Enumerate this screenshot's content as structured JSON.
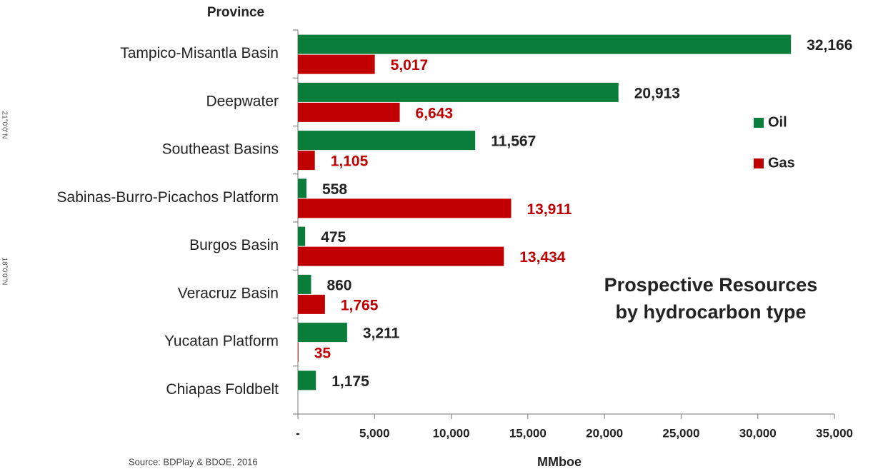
{
  "chart_data": {
    "type": "bar",
    "orientation": "horizontal",
    "y_label": "Province",
    "x_label": "MMboe",
    "annotation": "Prospective Resources\nby hydrocarbon type",
    "source": "Source: BDPlay & BDOE, 2016",
    "side_labels": [
      "21°0'0\"N",
      "18°0'0\"N"
    ],
    "categories": [
      "Tampico-Misantla Basin",
      "Deepwater",
      "Southeast Basins",
      "Sabinas-Burro-Picachos Platform",
      "Burgos Basin",
      "Veracruz Basin",
      "Yucatan Platform",
      "Chiapas Foldbelt"
    ],
    "series": [
      {
        "name": "Oil",
        "color": "#0b7d3b",
        "label_color": "#222222",
        "values": [
          32166,
          20913,
          11567,
          558,
          475,
          860,
          3211,
          1175
        ],
        "value_labels": [
          "32,166",
          "20,913",
          "11,567",
          "558",
          "475",
          "860",
          "3,211",
          "1,175"
        ]
      },
      {
        "name": "Gas",
        "color": "#c00000",
        "label_color": "#c00000",
        "values": [
          5017,
          6643,
          1105,
          13911,
          13434,
          1765,
          35,
          null
        ],
        "value_labels": [
          "5,017",
          "6,643",
          "1,105",
          "13,911",
          "13,434",
          "1,765",
          "35",
          null
        ]
      }
    ],
    "xlim": [
      0,
      35000
    ],
    "xticks": [
      {
        "value": 0,
        "label": "-"
      },
      {
        "value": 5000,
        "label": "5,000"
      },
      {
        "value": 10000,
        "label": "10,000"
      },
      {
        "value": 15000,
        "label": "15,000"
      },
      {
        "value": 20000,
        "label": "20,000"
      },
      {
        "value": 25000,
        "label": "25,000"
      },
      {
        "value": 30000,
        "label": "30,000"
      },
      {
        "value": 35000,
        "label": "35,000"
      }
    ],
    "legend": "right"
  }
}
